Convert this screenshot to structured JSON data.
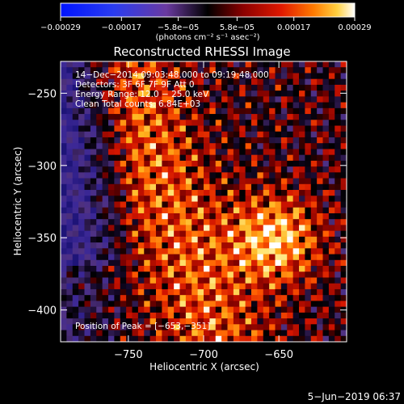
{
  "chart_data": {
    "type": "heatmap",
    "title": "Reconstructed RHESSI Image",
    "xlabel": "Heliocentric X (arcsec)",
    "ylabel": "Heliocentric Y (arcsec)",
    "xlim": [
      -795,
      -605
    ],
    "ylim": [
      -422,
      -228
    ],
    "x_ticks": [
      -750,
      -700,
      -650
    ],
    "x_tick_labels": [
      "−750",
      "−700",
      "−650"
    ],
    "y_ticks": [
      -250,
      -300,
      -350,
      -400
    ],
    "y_tick_labels": [
      "−250",
      "−300",
      "−350",
      "−400"
    ],
    "colorbar": {
      "min": -0.00029,
      "max": 0.00029,
      "ticks": [
        -0.00029,
        -0.00017,
        -5.8e-05,
        5.8e-05,
        0.00017,
        0.00029
      ],
      "tick_labels": [
        "−0.00029",
        "−0.00017",
        "−5.8e−05",
        "5.8e−05",
        "0.00017",
        "0.00029"
      ],
      "unit_label": "(photons cm⁻² s⁻¹ asec⁻²)"
    },
    "annotations": [
      "14−Dec−2014 09:03:48.000 to 09:19:48.000",
      "Detectors: 3F 6F 7F 9F  Att 0",
      "Energy Range: 12.0 − 25.0 keV",
      "Clean     Total counts: 6.84E+03"
    ],
    "peak_label": "Position of Peak = [−653,−351]",
    "peak": [
      -653,
      -351
    ],
    "footer_date": "5−Jun−2019 06:37"
  }
}
